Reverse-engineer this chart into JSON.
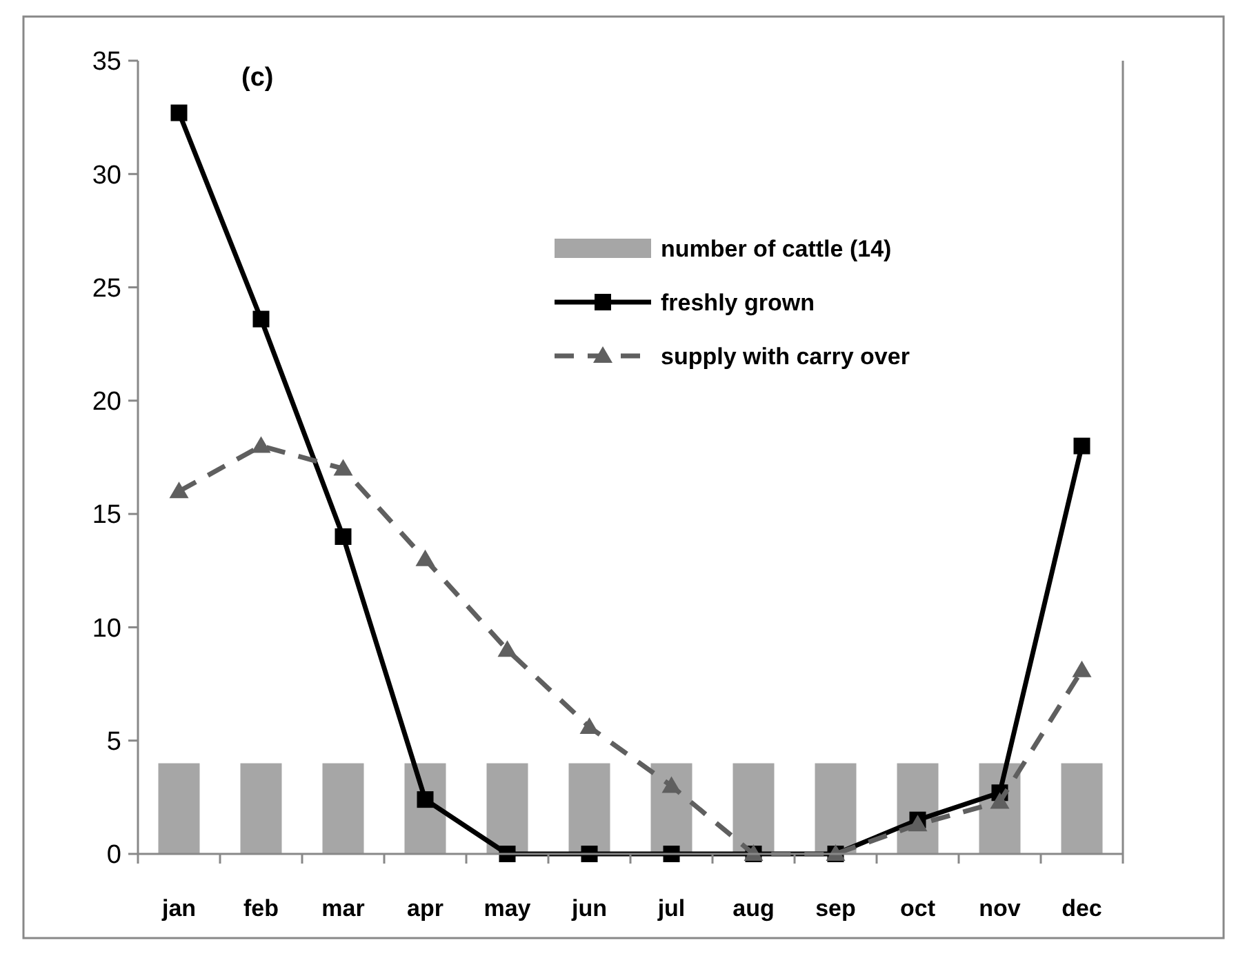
{
  "chart_data": {
    "type": "bar",
    "categories": [
      "jan",
      "feb",
      "mar",
      "apr",
      "may",
      "jun",
      "jul",
      "aug",
      "sep",
      "oct",
      "nov",
      "dec"
    ],
    "series": [
      {
        "name": "number of cattle (14)",
        "color": "#a6a6a6",
        "values": [
          4.0,
          4.0,
          4.0,
          4.0,
          4.0,
          4.0,
          4.0,
          4.0,
          4.0,
          4.0,
          4.0,
          4.0
        ]
      },
      {
        "name": "freshly grown",
        "type": "line",
        "color": "#000000",
        "marker": "square",
        "line_style": "solid",
        "values": [
          32.7,
          23.6,
          14.0,
          2.4,
          0,
          0,
          0,
          0,
          0,
          1.5,
          2.7,
          18.0
        ]
      },
      {
        "name": "supply with carry over",
        "type": "line",
        "color": "#5f5f5f",
        "marker": "triangle",
        "line_style": "dashed",
        "values": [
          16.0,
          18.0,
          17.0,
          13.0,
          9.0,
          5.6,
          3.0,
          0,
          0,
          1.3,
          2.3,
          8.1
        ]
      }
    ],
    "annotations": [
      "(c)"
    ],
    "ylim": [
      0,
      35
    ],
    "yticks": [
      0,
      5,
      10,
      15,
      20,
      25,
      30,
      35
    ],
    "grid": false,
    "legend": "top right"
  }
}
